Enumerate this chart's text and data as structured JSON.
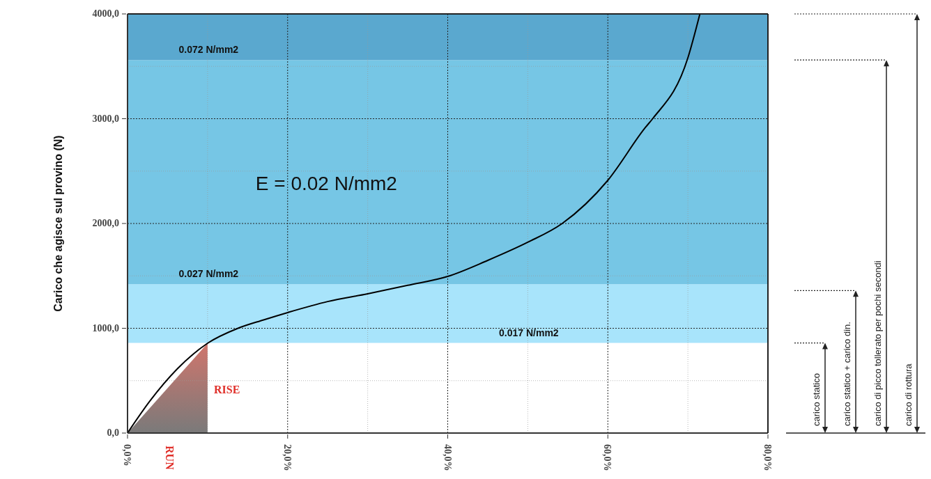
{
  "chart_data": {
    "type": "line",
    "ylabel": "Carico che agisce sul provino (N)",
    "xlim": [
      0,
      80
    ],
    "ylim": [
      0,
      4000
    ],
    "xticks": [
      {
        "value": 0,
        "label": "0,0%"
      },
      {
        "value": 10,
        "label": null
      },
      {
        "value": 20,
        "label": "20,0%"
      },
      {
        "value": 30,
        "label": null
      },
      {
        "value": 40,
        "label": "40,0%"
      },
      {
        "value": 50,
        "label": null
      },
      {
        "value": 60,
        "label": "60,0%"
      },
      {
        "value": 70,
        "label": null
      },
      {
        "value": 80,
        "label": "80,0%"
      }
    ],
    "yticks": [
      {
        "value": 0,
        "label": "0,0"
      },
      {
        "value": 500,
        "label": null
      },
      {
        "value": 1000,
        "label": "1000,0"
      },
      {
        "value": 1500,
        "label": null
      },
      {
        "value": 2000,
        "label": "2000,0"
      },
      {
        "value": 2500,
        "label": null
      },
      {
        "value": 3000,
        "label": "3000,0"
      },
      {
        "value": 3500,
        "label": null
      },
      {
        "value": 4000,
        "label": "4000,0"
      }
    ],
    "grid": true,
    "legend": false,
    "marker": "none",
    "line_style": "solid",
    "series": [
      {
        "type": "line",
        "color": "#000000",
        "x": [
          0,
          2.8,
          6.2,
          10,
          13.8,
          17,
          20,
          25,
          30,
          35,
          40,
          45,
          50,
          54.3,
          60,
          64.7,
          65.6,
          70,
          71.5
        ],
        "values": [
          0,
          306,
          611,
          857,
          1000,
          1080,
          1150,
          1255,
          1329,
          1410,
          1495,
          1648,
          1821,
          2000,
          2412,
          2917,
          3000,
          3581,
          4000
        ]
      },
      {
        "type": "area",
        "color": "#d0756c",
        "x": [
          0,
          10
        ],
        "values": [
          0,
          857
        ]
      }
    ],
    "bands": [
      {
        "axis": "y",
        "from": 860,
        "to": 1420,
        "label": "0.017 N/mm2",
        "color": "#a8e4fb"
      },
      {
        "axis": "y",
        "from": 1420,
        "to": 3560,
        "label": "0.027 N/mm2",
        "color": "#76c6e5"
      },
      {
        "axis": "y",
        "from": 3560,
        "to": 4000,
        "label": "0.072 N/mm2",
        "color": "#5aa8cf"
      }
    ],
    "annotations": [
      "E = 0.02 N/mm2",
      "RISE",
      "RUN",
      "carico statico",
      "carico statico + carico din.",
      "carico di picco tollerato per pochi secondi",
      "carico di rottura"
    ]
  }
}
